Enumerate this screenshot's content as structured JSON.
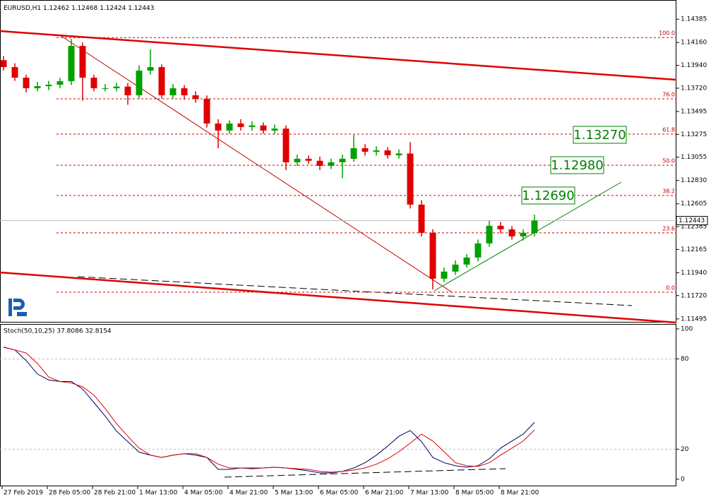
{
  "chart_data": [
    {
      "type": "candlestick",
      "header": [
        "EURUSD,H1",
        "1.12462",
        "1.12468",
        "1.12424",
        "1.12443"
      ],
      "open": [
        1.1399,
        1.13923,
        1.13821,
        1.13719,
        1.13739,
        1.13753,
        1.13787,
        1.14127,
        1.13821,
        1.13719,
        1.13719,
        1.13735,
        1.13651,
        1.13889,
        1.13923,
        1.13651,
        1.13719,
        1.13651,
        1.13617,
        1.13379,
        1.13311,
        1.13379,
        1.13345,
        1.1336,
        1.13311,
        1.1333,
        1.13005,
        1.13039,
        1.1302,
        1.12971,
        1.13005,
        1.13039,
        1.13141,
        1.13107,
        1.1312,
        1.13073,
        1.1309,
        1.12597,
        1.12325,
        1.11883,
        1.11951,
        1.12019,
        1.12087,
        1.12223,
        1.12393,
        1.12359,
        1.12291,
        1.12325
      ],
      "high": [
        1.1403,
        1.1396,
        1.1385,
        1.1378,
        1.1379,
        1.1382,
        1.14195,
        1.1416,
        1.1385,
        1.1376,
        1.1377,
        1.1377,
        1.1394,
        1.14093,
        1.1395,
        1.1376,
        1.1375,
        1.1369,
        1.1365,
        1.1342,
        1.1341,
        1.1342,
        1.134,
        1.1339,
        1.1337,
        1.1336,
        1.1308,
        1.1307,
        1.1306,
        1.1304,
        1.1308,
        1.1327,
        1.1318,
        1.1316,
        1.1315,
        1.1313,
        1.132,
        1.1264,
        1.1236,
        1.1199,
        1.1206,
        1.1212,
        1.1226,
        1.1244,
        1.1243,
        1.1239,
        1.1236,
        1.125
      ],
      "low": [
        1.1389,
        1.1379,
        1.1368,
        1.1369,
        1.137,
        1.1372,
        1.1375,
        1.136,
        1.1369,
        1.1369,
        1.1369,
        1.1356,
        1.1362,
        1.1385,
        1.1362,
        1.1362,
        1.1361,
        1.1358,
        1.1334,
        1.1314,
        1.1328,
        1.1331,
        1.1331,
        1.1328,
        1.1328,
        1.1293,
        1.1297,
        1.1299,
        1.1293,
        1.1294,
        1.1285,
        1.1301,
        1.1307,
        1.1307,
        1.1304,
        1.1304,
        1.1256,
        1.1229,
        1.11781,
        1.1185,
        1.1192,
        1.1199,
        1.1205,
        1.1219,
        1.1232,
        1.1226,
        1.1225,
        1.1229
      ],
      "close": [
        1.13923,
        1.13821,
        1.13719,
        1.13739,
        1.13753,
        1.13787,
        1.14127,
        1.13821,
        1.13719,
        1.13719,
        1.13735,
        1.13651,
        1.13889,
        1.13923,
        1.13651,
        1.13719,
        1.13651,
        1.13617,
        1.13379,
        1.13311,
        1.13379,
        1.13345,
        1.1336,
        1.13311,
        1.1333,
        1.13005,
        1.13039,
        1.1302,
        1.12971,
        1.13005,
        1.13039,
        1.13141,
        1.13107,
        1.1312,
        1.13073,
        1.1309,
        1.12597,
        1.12325,
        1.11883,
        1.11951,
        1.12019,
        1.12087,
        1.12223,
        1.12393,
        1.12359,
        1.12291,
        1.12325,
        1.12443
      ],
      "up_color": "#00a000",
      "down_color": "#e00000",
      "ylim": [
        1.1146,
        1.1457
      ],
      "yticks": [
        1.14385,
        {
          "value": 1.1416,
          "label": "1.14160"
        },
        {
          "value": 1.1394,
          "label": "1.13940"
        },
        {
          "value": 1.1372,
          "label": "1.13720"
        },
        1.13495,
        1.13275,
        1.13055,
        {
          "value": 1.1283,
          "label": "1.12830"
        },
        1.12605,
        1.12385,
        1.12165,
        {
          "value": 1.1194,
          "label": "1.11940"
        },
        {
          "value": 1.1172,
          "label": "1.11720"
        },
        1.11495
      ],
      "current_price": 1.12443,
      "fibonacci": [
        {
          "level": "100.0",
          "price": 1.14208
        },
        {
          "level": "76.0",
          "price": 1.13617
        },
        {
          "level": "61.8",
          "price": 1.13277
        },
        {
          "level": "50.0",
          "price": 1.12977
        },
        {
          "level": "38.2",
          "price": 1.12685
        },
        {
          "level": "23.6",
          "price": 1.12325
        },
        {
          "level": "0.0",
          "price": 1.11753
        }
      ],
      "fib_color": "#d00000",
      "annotations": [
        "1.13270",
        "1.12980",
        "1.12690"
      ],
      "x_labels": [
        "27 Feb 2019",
        "28 Feb 05:00",
        "28 Feb 21:00",
        "1 Mar 13:00",
        "4 Mar 05:00",
        "4 Mar 21:00",
        "5 Mar 13:00",
        "6 Mar 05:00",
        "6 Mar 21:00",
        "7 Mar 13:00",
        "8 Mar 05:00",
        "8 Mar 21:00"
      ]
    },
    {
      "type": "line",
      "title": "Stoch(50,10,25) 37.8086 32.8154",
      "ylim": [
        0,
        100
      ],
      "yticks": [
        0,
        20,
        80,
        100
      ],
      "series": [
        {
          "color": "#000060",
          "values": [
            87.8,
            86,
            79,
            70,
            66,
            65,
            65,
            60,
            51,
            42,
            32,
            25,
            18,
            16,
            14.5,
            16,
            17,
            16,
            14.5,
            6.6,
            6.6,
            7.5,
            7,
            7.5,
            8,
            7.5,
            6.6,
            5.6,
            4.2,
            4.2,
            5.2,
            7.5,
            11,
            16,
            22,
            28.6,
            32.4,
            25,
            14.5,
            11,
            9,
            8,
            9,
            13.6,
            20.7,
            25.4,
            30,
            37.8
          ]
        },
        {
          "color": "#e00000",
          "values": [
            88,
            86,
            84,
            77,
            68,
            65,
            64,
            61.5,
            56,
            47,
            37,
            28.6,
            20.7,
            16,
            14.5,
            16,
            17,
            17,
            14.5,
            10,
            7.5,
            7.5,
            7.5,
            7.5,
            8,
            7.5,
            7,
            6.6,
            5.2,
            4.7,
            5.2,
            6.1,
            7.5,
            10,
            13.6,
            18.3,
            24,
            30,
            25.4,
            18.3,
            11,
            9,
            8.5,
            11,
            16,
            20.7,
            25.4,
            32.8
          ]
        }
      ]
    }
  ]
}
